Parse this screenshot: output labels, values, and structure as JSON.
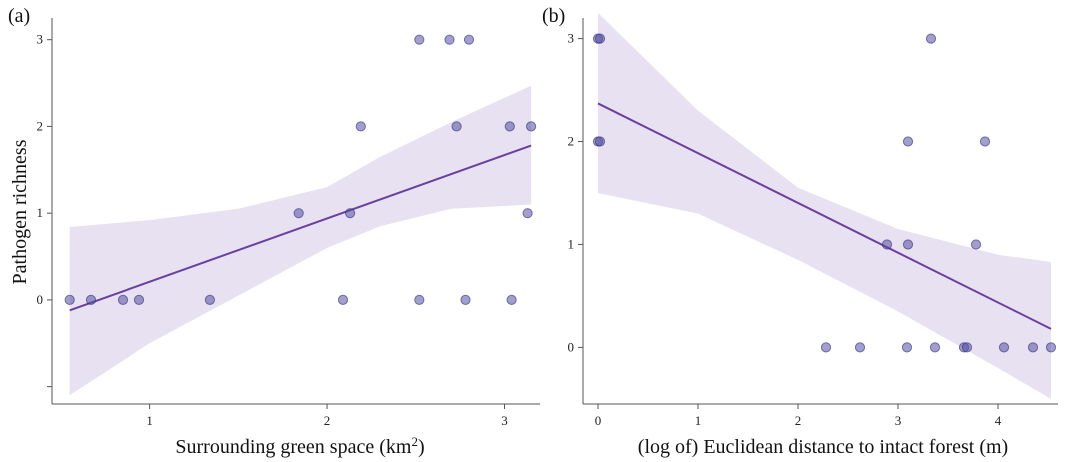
{
  "chart_data": [
    {
      "panel": "(a)",
      "type": "scatter",
      "xlabel": "Surrounding green space (km2)",
      "ylabel": "Pathogen richness",
      "xlim": [
        0.45,
        3.2
      ],
      "ylim": [
        -1.2,
        3.25
      ],
      "xticks": [
        1,
        2,
        3
      ],
      "yticks": [
        0,
        1,
        2,
        3
      ],
      "extra_ytick_marks": [
        -1
      ],
      "points": [
        {
          "x": 0.55,
          "y": 0
        },
        {
          "x": 0.67,
          "y": 0
        },
        {
          "x": 0.85,
          "y": 0
        },
        {
          "x": 0.94,
          "y": 0
        },
        {
          "x": 1.34,
          "y": 0
        },
        {
          "x": 1.84,
          "y": 1
        },
        {
          "x": 2.09,
          "y": 0
        },
        {
          "x": 2.13,
          "y": 1
        },
        {
          "x": 2.19,
          "y": 2
        },
        {
          "x": 2.52,
          "y": 3
        },
        {
          "x": 2.52,
          "y": 0
        },
        {
          "x": 2.69,
          "y": 3
        },
        {
          "x": 2.73,
          "y": 2
        },
        {
          "x": 2.78,
          "y": 0
        },
        {
          "x": 2.8,
          "y": 3
        },
        {
          "x": 3.03,
          "y": 2
        },
        {
          "x": 3.04,
          "y": 0
        },
        {
          "x": 3.13,
          "y": 1
        },
        {
          "x": 3.15,
          "y": 2
        }
      ],
      "fit": {
        "x0": 0.55,
        "y0": -0.12,
        "x1": 3.15,
        "y1": 1.78
      },
      "ci_band": [
        {
          "x": 0.55,
          "lo": -1.1,
          "hi": 0.84
        },
        {
          "x": 1.0,
          "lo": -0.5,
          "hi": 0.92
        },
        {
          "x": 1.5,
          "lo": 0.05,
          "hi": 1.05
        },
        {
          "x": 2.0,
          "lo": 0.6,
          "hi": 1.3
        },
        {
          "x": 2.3,
          "lo": 0.85,
          "hi": 1.65
        },
        {
          "x": 2.7,
          "lo": 1.05,
          "hi": 2.05
        },
        {
          "x": 3.15,
          "lo": 1.1,
          "hi": 2.47
        }
      ]
    },
    {
      "panel": "(b)",
      "type": "scatter",
      "xlabel": "(log of) Euclidean distance to intact forest (m)",
      "ylabel": "",
      "xlim": [
        -0.15,
        4.6
      ],
      "ylim": [
        -0.55,
        3.2
      ],
      "xticks": [
        0,
        1,
        2,
        3,
        4
      ],
      "yticks": [
        0,
        1,
        2,
        3
      ],
      "extra_ytick_marks": [],
      "points": [
        {
          "x": 0.0,
          "y": 3
        },
        {
          "x": 0.02,
          "y": 3
        },
        {
          "x": 0.0,
          "y": 2
        },
        {
          "x": 0.02,
          "y": 2
        },
        {
          "x": 2.28,
          "y": 0
        },
        {
          "x": 2.62,
          "y": 0
        },
        {
          "x": 2.89,
          "y": 1
        },
        {
          "x": 3.09,
          "y": 0
        },
        {
          "x": 3.1,
          "y": 1
        },
        {
          "x": 3.1,
          "y": 2
        },
        {
          "x": 3.33,
          "y": 3
        },
        {
          "x": 3.37,
          "y": 0
        },
        {
          "x": 3.66,
          "y": 0
        },
        {
          "x": 3.69,
          "y": 0
        },
        {
          "x": 3.78,
          "y": 1
        },
        {
          "x": 3.87,
          "y": 2
        },
        {
          "x": 4.06,
          "y": 0
        },
        {
          "x": 4.35,
          "y": 0
        },
        {
          "x": 4.53,
          "y": 0
        }
      ],
      "fit": {
        "x0": 0.0,
        "y0": 2.37,
        "x1": 4.53,
        "y1": 0.18
      },
      "ci_band": [
        {
          "x": 0.0,
          "lo": 1.5,
          "hi": 3.25
        },
        {
          "x": 1.0,
          "lo": 1.3,
          "hi": 2.3
        },
        {
          "x": 2.0,
          "lo": 0.85,
          "hi": 1.55
        },
        {
          "x": 3.0,
          "lo": 0.35,
          "hi": 1.15
        },
        {
          "x": 4.0,
          "lo": -0.2,
          "hi": 0.9
        },
        {
          "x": 4.53,
          "lo": -0.5,
          "hi": 0.83
        }
      ]
    }
  ],
  "colors": {
    "point": "#5550a3",
    "point_edge": "#2e2a78",
    "fit_line": "#6a3fa0",
    "ci_band": "#e3dcef",
    "axis": "#555555"
  }
}
